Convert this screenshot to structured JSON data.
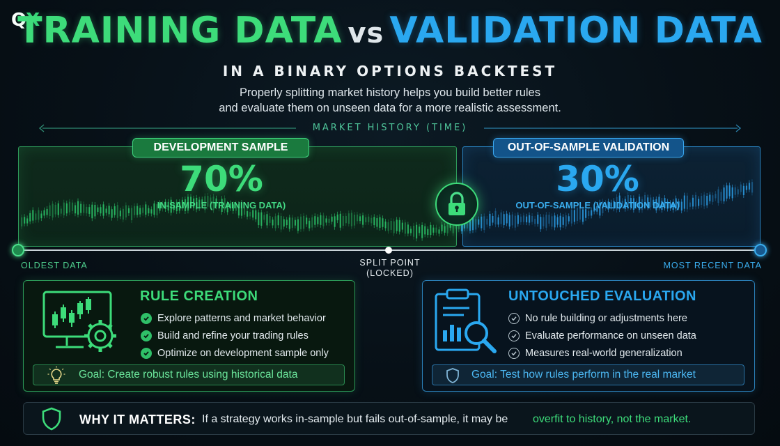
{
  "brand": {
    "logo_q": "Q",
    "logo_x": "X"
  },
  "header": {
    "title_left": "TRAINING DATA",
    "title_vs": "vs",
    "title_right": "VALIDATION DATA",
    "subtitle": "IN A BINARY OPTIONS BACKTEST",
    "intro_line1": "Properly splitting market history helps you build better rules",
    "intro_line2": "and evaluate them on unseen data for a more realistic assessment."
  },
  "timeline": {
    "label": "MARKET HISTORY (TIME)",
    "oldest": "OLDEST DATA",
    "recent": "MOST RECENT DATA",
    "split_line1": "SPLIT POINT",
    "split_line2": "(LOCKED)"
  },
  "development": {
    "pill": "DEVELOPMENT SAMPLE",
    "percent": "70%",
    "sub": "IN-SAMPLE (TRAINING DATA)"
  },
  "validation": {
    "pill": "OUT-OF-SAMPLE VALIDATION",
    "percent": "30%",
    "sub": "OUT-OF-SAMPLE (VALIDATION DATA)"
  },
  "rule_card": {
    "title": "RULE CREATION",
    "bullets": [
      "Explore patterns and market behavior",
      "Build and refine your trading rules",
      "Optimize on development sample only"
    ],
    "goal": "Goal: Create robust rules using historical data"
  },
  "eval_card": {
    "title": "UNTOUCHED EVALUATION",
    "bullets": [
      "No rule building or adjustments here",
      "Evaluate performance on unseen data",
      "Measures real-world generalization"
    ],
    "goal": "Goal: Test how rules perform in the real market"
  },
  "why": {
    "label": "WHY IT MATTERS:",
    "text": "If a strategy works in-sample but fails out-of-sample, it may be",
    "highlight": "overfit to history, not the market."
  },
  "colors": {
    "green": "#3ddc7a",
    "blue": "#2aa8f0"
  },
  "icons": [
    "monitor-candles-gear-icon",
    "lock-icon",
    "clipboard-magnifier-icon",
    "lightbulb-icon",
    "shield-icon",
    "check-icon"
  ]
}
